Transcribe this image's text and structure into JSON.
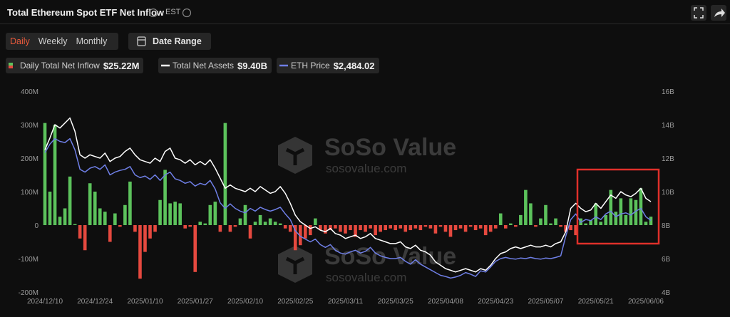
{
  "header": {
    "title": "Total Ethereum Spot ETF Net Inflow",
    "timezone": "EST"
  },
  "tabs": [
    "Daily",
    "Weekly",
    "Monthly"
  ],
  "active_tab": 0,
  "date_range": "Date Range",
  "watermark": {
    "name": "SoSo Value",
    "url": "sosovalue.com"
  },
  "chart_data": {
    "type": "combo",
    "categories": [
      "2024/12/10",
      null,
      null,
      null,
      null,
      null,
      null,
      null,
      null,
      null,
      "2024/12/24",
      null,
      null,
      null,
      null,
      null,
      null,
      null,
      null,
      null,
      "2025/01/10",
      null,
      null,
      null,
      null,
      null,
      null,
      null,
      null,
      null,
      "2025/01/27",
      null,
      null,
      null,
      null,
      null,
      null,
      null,
      null,
      null,
      "2025/02/10",
      null,
      null,
      null,
      null,
      null,
      null,
      null,
      null,
      null,
      "2025/02/25",
      null,
      null,
      null,
      null,
      null,
      null,
      null,
      null,
      null,
      "2025/03/11",
      null,
      null,
      null,
      null,
      null,
      null,
      null,
      null,
      null,
      "2025/03/25",
      null,
      null,
      null,
      null,
      null,
      null,
      null,
      null,
      null,
      "2025/04/08",
      null,
      null,
      null,
      null,
      null,
      null,
      null,
      null,
      null,
      "2025/04/23",
      null,
      null,
      null,
      null,
      null,
      null,
      null,
      null,
      null,
      "2025/05/07",
      null,
      null,
      null,
      null,
      null,
      null,
      null,
      null,
      null,
      "2025/05/21",
      null,
      null,
      null,
      null,
      null,
      null,
      null,
      null,
      null,
      "2025/06/06",
      null
    ],
    "series": [
      {
        "name": "Daily Total Net Inflow",
        "type": "bar",
        "legend_value": "$25.22M",
        "positive_color": "#5cc25c",
        "negative_color": "#e5493f",
        "values": [
          305,
          100,
          300,
          25,
          50,
          145,
          3,
          -40,
          -75,
          125,
          100,
          50,
          40,
          -50,
          35,
          -5,
          60,
          130,
          -20,
          -160,
          -80,
          -40,
          -20,
          75,
          165,
          65,
          70,
          65,
          -10,
          -5,
          -140,
          10,
          5,
          60,
          70,
          -20,
          305,
          -20,
          -5,
          20,
          60,
          -40,
          10,
          30,
          10,
          20,
          10,
          5,
          -10,
          -20,
          -75,
          -60,
          -40,
          -30,
          20,
          -15,
          -25,
          -15,
          -10,
          -20,
          -25,
          -15,
          -35,
          -15,
          -20,
          -10,
          -30,
          -20,
          -15,
          -10,
          -15,
          -10,
          -20,
          -15,
          -10,
          -15,
          -5,
          -10,
          -25,
          -5,
          -20,
          -35,
          -15,
          -10,
          -20,
          -5,
          -15,
          -10,
          -30,
          -20,
          -10,
          35,
          -10,
          5,
          -5,
          30,
          105,
          65,
          -5,
          20,
          60,
          5,
          20,
          -5,
          -20,
          -15,
          -30,
          20,
          5,
          15,
          65,
          10,
          30,
          105,
          40,
          80,
          30,
          80,
          75,
          110,
          10,
          25.22
        ]
      },
      {
        "name": "Total Net Assets",
        "type": "line",
        "axis": "y2",
        "color": "#ffffff",
        "legend_value": "$9.40B",
        "values": [
          12.5,
          13.2,
          14.0,
          13.8,
          14.1,
          14.4,
          13.6,
          12.2,
          12.0,
          12.2,
          12.1,
          12.0,
          12.3,
          11.8,
          12.0,
          12.1,
          12.4,
          12.6,
          12.2,
          11.9,
          11.8,
          11.7,
          12.0,
          11.8,
          12.4,
          12.6,
          12.0,
          11.9,
          11.7,
          11.9,
          11.6,
          11.8,
          11.6,
          11.9,
          11.4,
          10.8,
          10.2,
          10.4,
          10.2,
          10.1,
          10.0,
          10.2,
          10.0,
          10.3,
          10.1,
          9.9,
          10.0,
          10.3,
          9.9,
          9.3,
          8.6,
          8.2,
          8.0,
          7.8,
          7.9,
          7.7,
          7.6,
          7.8,
          7.5,
          7.4,
          7.2,
          7.3,
          7.4,
          7.2,
          7.3,
          7.5,
          7.2,
          7.1,
          7.0,
          6.9,
          6.9,
          7.0,
          6.7,
          6.6,
          6.8,
          6.5,
          6.4,
          6.2,
          5.8,
          5.6,
          5.4,
          5.3,
          5.2,
          5.3,
          5.4,
          5.3,
          5.2,
          5.4,
          5.3,
          5.6,
          6.0,
          6.3,
          6.4,
          6.6,
          6.7,
          6.6,
          6.7,
          6.8,
          6.7,
          6.7,
          6.8,
          6.7,
          6.9,
          7.0,
          7.6,
          9.0,
          9.3,
          9.0,
          8.8,
          8.9,
          9.3,
          9.0,
          9.4,
          9.8,
          9.6,
          10.0,
          9.8,
          9.7,
          9.9,
          10.2,
          9.6,
          9.4
        ]
      },
      {
        "name": "ETH Price",
        "type": "line",
        "axis": "y3",
        "color": "#6f7fe6",
        "legend_value": "$2,484.02",
        "values": [
          3700,
          3850,
          3950,
          3900,
          3880,
          3950,
          3750,
          3400,
          3350,
          3420,
          3450,
          3400,
          3480,
          3300,
          3350,
          3380,
          3400,
          3450,
          3300,
          3250,
          3280,
          3220,
          3300,
          3200,
          3300,
          3350,
          3230,
          3200,
          3150,
          3180,
          3100,
          3150,
          3120,
          3200,
          3050,
          2800,
          2700,
          2780,
          2700,
          2650,
          2620,
          2700,
          2650,
          2720,
          2680,
          2650,
          2680,
          2720,
          2600,
          2500,
          2300,
          2200,
          2150,
          2100,
          2150,
          2050,
          2000,
          2050,
          1950,
          1900,
          1880,
          1920,
          1950,
          1900,
          1930,
          2000,
          1900,
          1850,
          1820,
          1800,
          1800,
          1820,
          1750,
          1700,
          1780,
          1700,
          1650,
          1600,
          1550,
          1500,
          1480,
          1450,
          1470,
          1500,
          1550,
          1520,
          1480,
          1580,
          1560,
          1650,
          1750,
          1800,
          1820,
          1800,
          1790,
          1810,
          1800,
          1820,
          1800,
          1790,
          1810,
          1800,
          1820,
          1850,
          2200,
          2500,
          2600,
          2450,
          2500,
          2480,
          2550,
          2500,
          2600,
          2650,
          2550,
          2600,
          2620,
          2580,
          2650,
          2700,
          2550,
          2484.02
        ]
      }
    ],
    "ylim": [
      -200,
      400
    ],
    "yticks": [
      {
        "value": 400,
        "label": "400M"
      },
      {
        "value": 300,
        "label": "300M"
      },
      {
        "value": 200,
        "label": "200M"
      },
      {
        "value": 100,
        "label": "100M"
      },
      {
        "value": 0,
        "label": "0"
      },
      {
        "value": -100,
        "label": "-100M"
      },
      {
        "value": -200,
        "label": "-200M"
      }
    ],
    "y2lim": [
      4,
      16
    ],
    "y2ticks": [
      {
        "value": 16,
        "label": "16B"
      },
      {
        "value": 14,
        "label": "14B"
      },
      {
        "value": 12,
        "label": "12B"
      },
      {
        "value": 10,
        "label": "10B"
      },
      {
        "value": 8,
        "label": "8B"
      },
      {
        "value": 6,
        "label": "6B"
      },
      {
        "value": 4,
        "label": "4B"
      }
    ],
    "y3lim": [
      1200,
      4800
    ],
    "grid": false
  }
}
